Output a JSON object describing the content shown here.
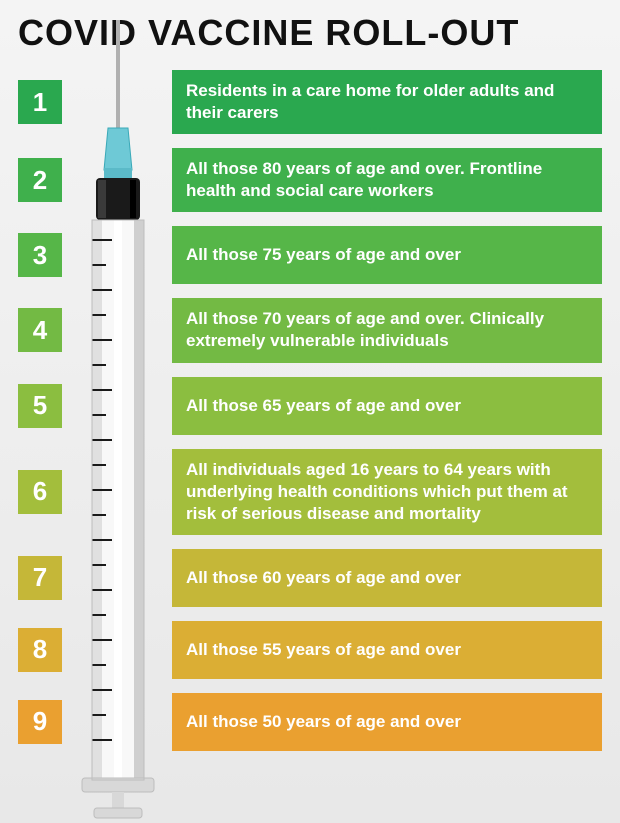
{
  "title": "COVID VACCINE ROLL-OUT",
  "title_fontsize": 36,
  "background_gradient": [
    "#f4f4f4",
    "#e8e8e8"
  ],
  "text_color": "#ffffff",
  "title_color": "#111111",
  "row_gap": 14,
  "number_box_size": 44,
  "items": [
    {
      "num": "1",
      "text": "Residents in a care home for older adults and their carers",
      "color": "#2aa84f"
    },
    {
      "num": "2",
      "text": "All those 80 years of age and over. Frontline health and social care workers",
      "color": "#3fb04c"
    },
    {
      "num": "3",
      "text": "All those 75 years of age and over",
      "color": "#56b648"
    },
    {
      "num": "4",
      "text": "All those 70 years of age and over. Clinically extremely vulnerable individuals",
      "color": "#73ba44"
    },
    {
      "num": "5",
      "text": "All those 65 years of age and over",
      "color": "#8bbe40"
    },
    {
      "num": "6",
      "text": "All individuals aged 16 years to 64 years with underlying health conditions which put them  at risk of serious disease and mortality",
      "color": "#a3be3c"
    },
    {
      "num": "7",
      "text": "All those 60 years of age and over",
      "color": "#c5b738"
    },
    {
      "num": "8",
      "text": "All those 55 years of age and over",
      "color": "#dbae34"
    },
    {
      "num": "9",
      "text": "All those 50 years of age and over",
      "color": "#eaa030"
    }
  ],
  "syringe": {
    "needle_color": "#b0b0b0",
    "cap_color": "#6ec9d6",
    "plunger_dark": "#1a1a1a",
    "barrel_light": "#f8f8f8",
    "barrel_shadow": "#cfcfcf",
    "tick_color": "#1a1a1a"
  }
}
